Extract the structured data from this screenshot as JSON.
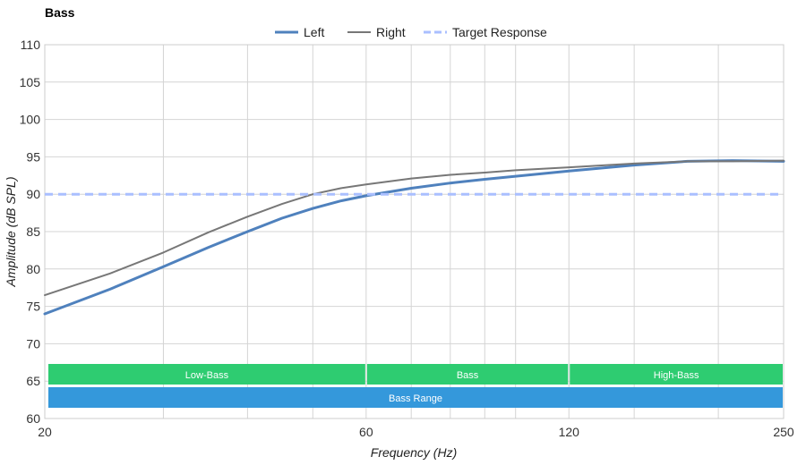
{
  "chart_data": {
    "type": "line",
    "title": "Bass",
    "xlabel": "Frequency (Hz)",
    "ylabel": "Amplitude (dB SPL)",
    "x_scale": "log",
    "xlim": [
      20,
      250
    ],
    "ylim": [
      60,
      110
    ],
    "x_ticks": [
      20,
      60,
      120,
      250
    ],
    "y_ticks": [
      60,
      65,
      70,
      75,
      80,
      85,
      90,
      95,
      100,
      105,
      110
    ],
    "grid": true,
    "legend_position": "top",
    "series": [
      {
        "name": "Left",
        "color": "#4f81bd",
        "style": "solid-thick",
        "x": [
          20,
          25,
          30,
          35,
          40,
          45,
          50,
          55,
          60,
          70,
          80,
          90,
          100,
          120,
          150,
          180,
          210,
          250
        ],
        "y": [
          74.0,
          77.3,
          80.3,
          82.9,
          85.0,
          86.8,
          88.1,
          89.1,
          89.8,
          90.8,
          91.5,
          92.0,
          92.4,
          93.1,
          93.9,
          94.4,
          94.5,
          94.4
        ]
      },
      {
        "name": "Right",
        "color": "#777777",
        "style": "solid",
        "x": [
          20,
          25,
          30,
          35,
          40,
          45,
          50,
          55,
          60,
          70,
          80,
          90,
          100,
          120,
          150,
          180,
          210,
          250
        ],
        "y": [
          76.5,
          79.4,
          82.2,
          84.9,
          87.0,
          88.7,
          90.0,
          90.8,
          91.3,
          92.1,
          92.6,
          92.9,
          93.2,
          93.6,
          94.1,
          94.4,
          94.4,
          94.5
        ]
      },
      {
        "name": "Target Response",
        "color": "#aabfff",
        "style": "dashed",
        "x": [
          20,
          250
        ],
        "y": [
          90,
          90
        ]
      }
    ],
    "bands": [
      {
        "label": "Low-Bass",
        "from": 20,
        "to": 60,
        "color": "#2ecc71",
        "row": 1
      },
      {
        "label": "Bass",
        "from": 60,
        "to": 120,
        "color": "#2ecc71",
        "row": 1
      },
      {
        "label": "High-Bass",
        "from": 120,
        "to": 250,
        "color": "#2ecc71",
        "row": 1
      },
      {
        "label": "Bass Range",
        "from": 20,
        "to": 250,
        "color": "#3498db",
        "row": 2
      }
    ]
  }
}
